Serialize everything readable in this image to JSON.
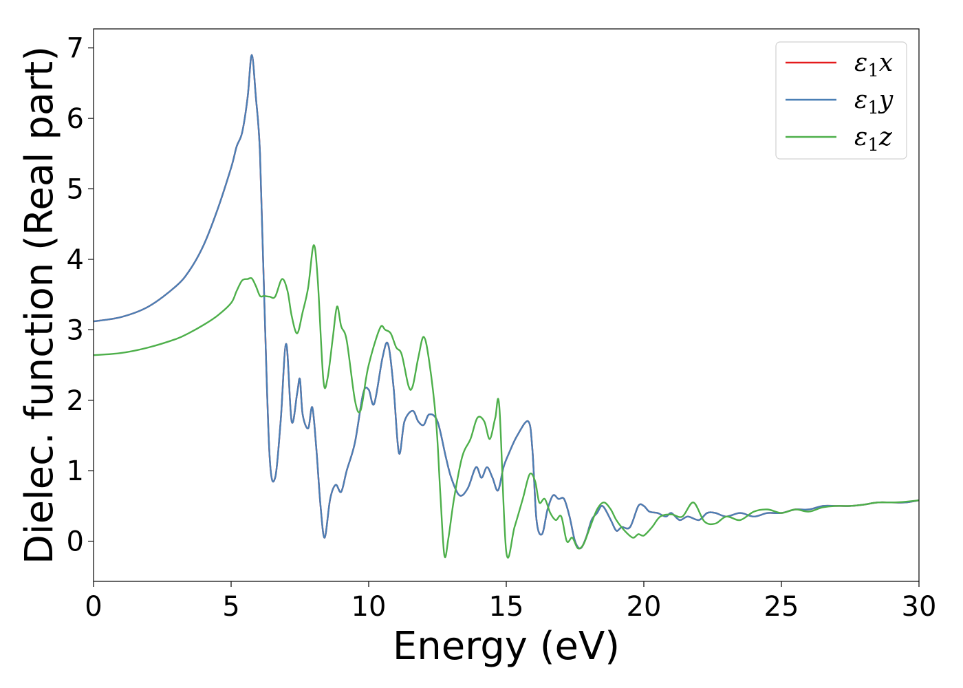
{
  "chart_data": {
    "type": "line",
    "title": "",
    "xlabel": "Energy (eV)",
    "ylabel": "Dielec. function (Real part)",
    "xlim": [
      0,
      30
    ],
    "ylim": [
      -0.57,
      7.27
    ],
    "xticks": [
      0,
      5,
      10,
      15,
      20,
      25,
      30
    ],
    "yticks": [
      0,
      1,
      2,
      3,
      4,
      5,
      6,
      7
    ],
    "grid": false,
    "legend_position": "top-right",
    "series": [
      {
        "name": "ε1x",
        "name_base": "ε",
        "name_sub": "1",
        "name_suffix": "x",
        "color": "#e41a1c",
        "x": [
          0,
          1,
          2,
          3,
          3.5,
          4,
          4.5,
          5,
          5.2,
          5.4,
          5.6,
          5.75,
          5.9,
          6.05,
          6.2,
          6.4,
          6.6,
          6.8,
          7.0,
          7.2,
          7.4,
          7.5,
          7.6,
          7.8,
          7.95,
          8.1,
          8.25,
          8.4,
          8.6,
          8.8,
          9.0,
          9.2,
          9.5,
          9.8,
          10.0,
          10.2,
          10.5,
          10.7,
          10.9,
          11.1,
          11.3,
          11.6,
          11.8,
          12.0,
          12.2,
          12.5,
          12.8,
          13.0,
          13.3,
          13.6,
          13.9,
          14.1,
          14.3,
          14.5,
          14.7,
          14.9,
          15.1,
          15.4,
          15.8,
          15.95,
          16.1,
          16.3,
          16.5,
          16.7,
          16.9,
          17.1,
          17.3,
          17.5,
          17.7,
          17.9,
          18.1,
          18.3,
          18.5,
          18.8,
          19.0,
          19.2,
          19.5,
          19.8,
          20.0,
          20.2,
          20.5,
          20.8,
          21.0,
          21.3,
          21.6,
          22.0,
          22.3,
          22.6,
          23.0,
          23.5,
          24.0,
          24.5,
          25.0,
          25.5,
          26.0,
          26.5,
          27.0,
          27.5,
          28.0,
          28.5,
          29.0,
          29.5,
          30.0
        ],
        "y": [
          3.12,
          3.18,
          3.33,
          3.62,
          3.85,
          4.2,
          4.7,
          5.3,
          5.6,
          5.8,
          6.3,
          6.9,
          6.3,
          5.5,
          3.5,
          1.2,
          0.9,
          1.7,
          2.8,
          1.7,
          2.1,
          2.3,
          1.8,
          1.6,
          1.9,
          1.3,
          0.5,
          0.05,
          0.6,
          0.8,
          0.7,
          1.0,
          1.4,
          2.1,
          2.15,
          1.95,
          2.6,
          2.8,
          2.2,
          1.25,
          1.7,
          1.85,
          1.7,
          1.65,
          1.8,
          1.7,
          1.2,
          0.9,
          0.65,
          0.75,
          1.05,
          0.9,
          1.05,
          0.9,
          0.72,
          1.05,
          1.25,
          1.5,
          1.7,
          1.3,
          0.3,
          0.1,
          0.45,
          0.65,
          0.6,
          0.6,
          0.35,
          0.0,
          -0.1,
          0.05,
          0.3,
          0.4,
          0.5,
          0.3,
          0.15,
          0.2,
          0.2,
          0.5,
          0.5,
          0.42,
          0.4,
          0.35,
          0.4,
          0.3,
          0.35,
          0.3,
          0.4,
          0.4,
          0.35,
          0.4,
          0.35,
          0.4,
          0.4,
          0.45,
          0.45,
          0.5,
          0.5,
          0.5,
          0.52,
          0.55,
          0.55,
          0.55,
          0.58
        ]
      },
      {
        "name": "ε1y",
        "name_base": "ε",
        "name_sub": "1",
        "name_suffix": "y",
        "color": "#4a7fb5",
        "x": [
          0,
          1,
          2,
          3,
          3.5,
          4,
          4.5,
          5,
          5.2,
          5.4,
          5.6,
          5.75,
          5.9,
          6.05,
          6.2,
          6.4,
          6.6,
          6.8,
          7.0,
          7.2,
          7.4,
          7.5,
          7.6,
          7.8,
          7.95,
          8.1,
          8.25,
          8.4,
          8.6,
          8.8,
          9.0,
          9.2,
          9.5,
          9.8,
          10.0,
          10.2,
          10.5,
          10.7,
          10.9,
          11.1,
          11.3,
          11.6,
          11.8,
          12.0,
          12.2,
          12.5,
          12.8,
          13.0,
          13.3,
          13.6,
          13.9,
          14.1,
          14.3,
          14.5,
          14.7,
          14.9,
          15.1,
          15.4,
          15.8,
          15.95,
          16.1,
          16.3,
          16.5,
          16.7,
          16.9,
          17.1,
          17.3,
          17.5,
          17.7,
          17.9,
          18.1,
          18.3,
          18.5,
          18.8,
          19.0,
          19.2,
          19.5,
          19.8,
          20.0,
          20.2,
          20.5,
          20.8,
          21.0,
          21.3,
          21.6,
          22.0,
          22.3,
          22.6,
          23.0,
          23.5,
          24.0,
          24.5,
          25.0,
          25.5,
          26.0,
          26.5,
          27.0,
          27.5,
          28.0,
          28.5,
          29.0,
          29.5,
          30.0
        ],
        "y": [
          3.12,
          3.18,
          3.33,
          3.62,
          3.85,
          4.2,
          4.7,
          5.3,
          5.6,
          5.8,
          6.3,
          6.9,
          6.3,
          5.5,
          3.5,
          1.2,
          0.9,
          1.7,
          2.8,
          1.7,
          2.1,
          2.3,
          1.8,
          1.6,
          1.9,
          1.3,
          0.5,
          0.05,
          0.6,
          0.8,
          0.7,
          1.0,
          1.4,
          2.1,
          2.15,
          1.95,
          2.6,
          2.8,
          2.2,
          1.25,
          1.7,
          1.85,
          1.7,
          1.65,
          1.8,
          1.7,
          1.2,
          0.9,
          0.65,
          0.75,
          1.05,
          0.9,
          1.05,
          0.9,
          0.72,
          1.05,
          1.25,
          1.5,
          1.7,
          1.3,
          0.3,
          0.1,
          0.45,
          0.65,
          0.6,
          0.6,
          0.35,
          0.0,
          -0.1,
          0.05,
          0.3,
          0.4,
          0.5,
          0.3,
          0.15,
          0.2,
          0.2,
          0.5,
          0.5,
          0.42,
          0.4,
          0.35,
          0.4,
          0.3,
          0.35,
          0.3,
          0.4,
          0.4,
          0.35,
          0.4,
          0.35,
          0.4,
          0.4,
          0.45,
          0.45,
          0.5,
          0.5,
          0.5,
          0.52,
          0.55,
          0.55,
          0.55,
          0.58
        ]
      },
      {
        "name": "ε1z",
        "name_base": "ε",
        "name_sub": "1",
        "name_suffix": "z",
        "color": "#4daf4a",
        "x": [
          0,
          1,
          2,
          3,
          3.5,
          4,
          4.5,
          5,
          5.2,
          5.4,
          5.6,
          5.75,
          5.9,
          6.05,
          6.2,
          6.4,
          6.6,
          6.85,
          7.05,
          7.2,
          7.4,
          7.6,
          7.8,
          8.0,
          8.15,
          8.35,
          8.5,
          8.7,
          8.85,
          9.0,
          9.2,
          9.5,
          9.7,
          9.9,
          10.0,
          10.25,
          10.45,
          10.6,
          10.8,
          11.0,
          11.2,
          11.45,
          11.6,
          11.8,
          12.0,
          12.2,
          12.45,
          12.6,
          12.75,
          12.9,
          13.1,
          13.4,
          13.7,
          13.95,
          14.2,
          14.4,
          14.6,
          14.75,
          15.0,
          15.3,
          15.6,
          15.85,
          16.05,
          16.2,
          16.4,
          16.6,
          16.8,
          17.0,
          17.2,
          17.4,
          17.6,
          17.8,
          18.0,
          18.3,
          18.55,
          18.8,
          19.0,
          19.3,
          19.6,
          19.8,
          20.0,
          20.3,
          20.6,
          21.0,
          21.4,
          21.8,
          22.2,
          22.6,
          23.0,
          23.5,
          24.0,
          24.5,
          25.0,
          25.5,
          26.0,
          26.5,
          27.0,
          27.5,
          28.0,
          28.5,
          29.0,
          29.5,
          30.0
        ],
        "y": [
          2.64,
          2.67,
          2.75,
          2.87,
          2.96,
          3.07,
          3.2,
          3.38,
          3.55,
          3.7,
          3.72,
          3.73,
          3.62,
          3.48,
          3.48,
          3.47,
          3.47,
          3.72,
          3.55,
          3.2,
          2.95,
          3.25,
          3.6,
          4.2,
          3.7,
          2.3,
          2.3,
          2.9,
          3.33,
          3.05,
          2.85,
          2.0,
          1.85,
          2.3,
          2.5,
          2.85,
          3.05,
          3.0,
          2.95,
          2.75,
          2.65,
          2.2,
          2.2,
          2.6,
          2.9,
          2.55,
          1.7,
          0.7,
          -0.2,
          0.05,
          0.6,
          1.2,
          1.45,
          1.75,
          1.7,
          1.45,
          1.75,
          1.9,
          -0.15,
          0.2,
          0.6,
          0.95,
          0.85,
          0.55,
          0.6,
          0.4,
          0.3,
          0.35,
          0.0,
          0.05,
          -0.1,
          -0.05,
          0.15,
          0.45,
          0.55,
          0.45,
          0.3,
          0.15,
          0.05,
          0.1,
          0.08,
          0.2,
          0.35,
          0.38,
          0.35,
          0.55,
          0.28,
          0.25,
          0.35,
          0.3,
          0.42,
          0.45,
          0.4,
          0.45,
          0.42,
          0.48,
          0.5,
          0.5,
          0.52,
          0.55,
          0.55,
          0.56,
          0.58
        ]
      }
    ]
  }
}
